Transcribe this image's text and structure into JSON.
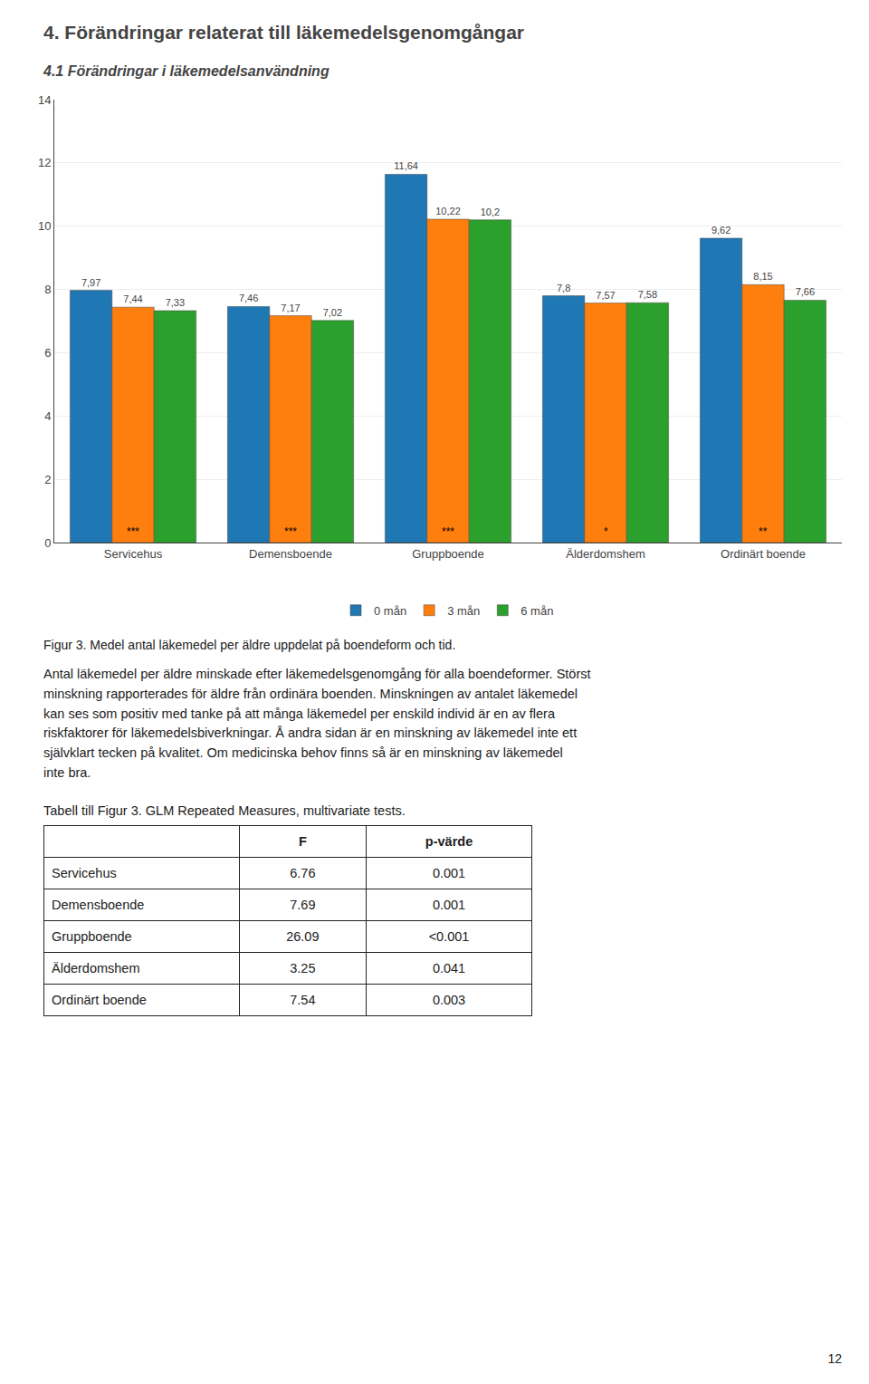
{
  "chart_data": {
    "type": "bar",
    "title": "4. Förändringar relaterat till läkemedelsgenomgångar",
    "subtitle": "4.1 Förändringar i läkemedelsanvändning",
    "categories": [
      "Servicehus",
      "Demensboende",
      "Gruppboende",
      "Älderdomshem",
      "Ordinärt boende"
    ],
    "series": [
      {
        "name": "0 mån",
        "values": [
          7.97,
          7.46,
          11.64,
          7.8,
          9.62
        ],
        "value_labels": [
          "7,97",
          "7,46",
          "11,64",
          "7,8",
          "9,62"
        ]
      },
      {
        "name": "3 mån",
        "values": [
          7.44,
          7.17,
          10.22,
          7.57,
          8.15
        ],
        "value_labels": [
          "7,44",
          "7,17",
          "10,22",
          "7,57",
          "8,15"
        ],
        "annotations": [
          "***",
          "***",
          "***",
          "*",
          "**"
        ]
      },
      {
        "name": "6 mån",
        "values": [
          7.33,
          7.02,
          10.2,
          7.58,
          7.66
        ],
        "value_labels": [
          "7,33",
          "7,02",
          "10,2",
          "7,58",
          "7,66"
        ]
      }
    ],
    "ylim": [
      0,
      14
    ],
    "yticks": [
      0,
      2,
      4,
      6,
      8,
      10,
      12,
      14
    ],
    "grid": true,
    "legend": "bottom",
    "data_labels": true
  },
  "caption": "Figur 3. Medel antal läkemedel per äldre uppdelat på boendeform och tid.",
  "body_text": [
    "Antal läkemedel per äldre minskade efter läkemedelsgenomgång för alla boendeformer. Störst",
    "minskning rapporterades för äldre från ordinära boenden. Minskningen av antalet läkemedel",
    "kan ses som positiv med tanke på att många läkemedel per enskild individ är en av flera",
    "riskfaktorer för läkemedelsbiverkningar. Å andra sidan är en minskning av läkemedel inte ett",
    "självklart tecken på kvalitet. Om medicinska behov finns så är en minskning av läkemedel",
    "inte bra."
  ],
  "table": {
    "title": "Tabell till Figur 3. GLM Repeated Measures, multivariate tests.",
    "headers": [
      "F",
      "p-värde"
    ],
    "rows": [
      [
        "Servicehus",
        "6.76",
        "0.001"
      ],
      [
        "Demensboende",
        "7.69",
        "0.001"
      ],
      [
        "Gruppboende",
        "26.09",
        "<0.001"
      ],
      [
        "Älderdomshem",
        "3.25",
        "0.041"
      ],
      [
        "Ordinärt boende",
        "7.54",
        "0.003"
      ]
    ]
  },
  "page_number": "12"
}
